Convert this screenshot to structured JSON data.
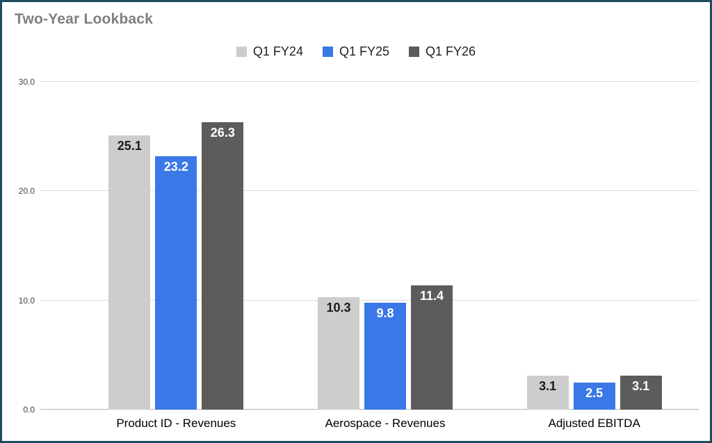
{
  "title": "Two-Year Lookback",
  "chart_data": {
    "type": "bar",
    "title": "Two-Year Lookback",
    "categories": [
      "Product ID - Revenues",
      "Aerospace - Revenues",
      "Adjusted EBITDA"
    ],
    "series": [
      {
        "name": "Q1 FY24",
        "values": [
          25.1,
          10.3,
          3.1
        ],
        "color": "#cdcdcd",
        "label_color": "#1a1a1a"
      },
      {
        "name": "Q1 FY25",
        "values": [
          23.2,
          9.8,
          2.5
        ],
        "color": "#3b78e7",
        "label_color": "#ffffff"
      },
      {
        "name": "Q1 FY26",
        "values": [
          26.3,
          11.4,
          3.1
        ],
        "color": "#5c5c5c",
        "label_color": "#ffffff"
      }
    ],
    "ylim": [
      0,
      30
    ],
    "yticks": [
      0,
      10,
      20,
      30
    ],
    "ytick_labels": [
      "0.0",
      "10.0",
      "20.0",
      "30.0"
    ],
    "grid": true,
    "legend_position": "top"
  },
  "colors": {
    "frame_border": "#1d4d5e",
    "title_text": "#7f7f7f",
    "gridline": "#dadada",
    "baseline": "#b5b5b5"
  }
}
